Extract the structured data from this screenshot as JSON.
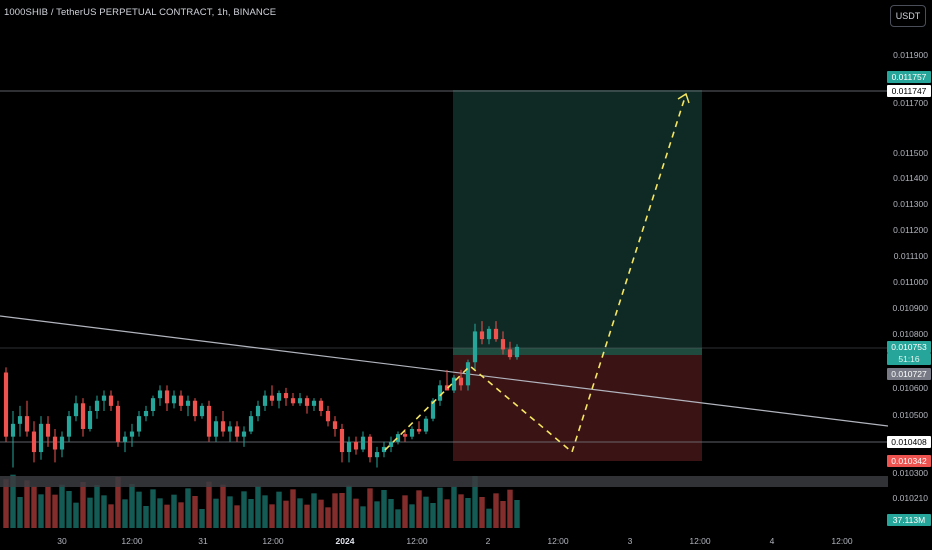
{
  "header": {
    "symbol_title": "1000SHIB / TetherUS PERPETUAL CONTRACT, 1h, BINANCE",
    "currency_button": "USDT"
  },
  "colors": {
    "up": "#26a69a",
    "down": "#ef5350",
    "profit_zone": "#0f2a24",
    "loss_zone": "#3a1315",
    "projection": "#f5e663",
    "trendline": "#b2b5be",
    "background": "#000000"
  },
  "price_axis": {
    "ticks": [
      "0.011900",
      "0.011700",
      "0.011500",
      "0.011400",
      "0.011300",
      "0.011200",
      "0.011100",
      "0.011000",
      "0.010900",
      "0.010800",
      "0.010600",
      "0.010500",
      "0.010300",
      "0.010210"
    ],
    "tags": {
      "target": "0.011757",
      "target_line": "0.011747",
      "last_price": "0.010753",
      "countdown": "51:16",
      "entry": "0.010727",
      "level": "0.010408",
      "stop": "0.010342",
      "volume": "37.113M"
    }
  },
  "time_axis": {
    "labels": [
      "30",
      "12:00",
      "31",
      "12:00",
      "2024",
      "12:00",
      "2",
      "12:00",
      "3",
      "12:00",
      "4",
      "12:00"
    ]
  },
  "chart_data": {
    "type": "candlestick",
    "interval": "1h",
    "ylim": [
      0.0102,
      0.01195
    ],
    "candles_ohlc": [
      [
        0.01065,
        0.01067,
        0.01038,
        0.0104
      ],
      [
        0.0104,
        0.0105,
        0.01028,
        0.01045
      ],
      [
        0.01045,
        0.01052,
        0.0104,
        0.01048
      ],
      [
        0.01048,
        0.01054,
        0.0104,
        0.01042
      ],
      [
        0.01042,
        0.01046,
        0.0103,
        0.01034
      ],
      [
        0.01034,
        0.01048,
        0.01031,
        0.01045
      ],
      [
        0.01045,
        0.01048,
        0.01036,
        0.0104
      ],
      [
        0.0104,
        0.01043,
        0.0103,
        0.01035
      ],
      [
        0.01035,
        0.01042,
        0.01032,
        0.0104
      ],
      [
        0.0104,
        0.0105,
        0.01038,
        0.01048
      ],
      [
        0.01048,
        0.01056,
        0.01046,
        0.01053
      ],
      [
        0.01053,
        0.01055,
        0.0104,
        0.01043
      ],
      [
        0.01043,
        0.01052,
        0.01042,
        0.0105
      ],
      [
        0.0105,
        0.01056,
        0.01047,
        0.01054
      ],
      [
        0.01054,
        0.01058,
        0.0105,
        0.01056
      ],
      [
        0.01056,
        0.01058,
        0.0105,
        0.01052
      ],
      [
        0.01052,
        0.01054,
        0.01036,
        0.01038
      ],
      [
        0.01038,
        0.01042,
        0.01034,
        0.0104
      ],
      [
        0.0104,
        0.01045,
        0.01036,
        0.01042
      ],
      [
        0.01042,
        0.0105,
        0.0104,
        0.01048
      ],
      [
        0.01048,
        0.01052,
        0.01046,
        0.0105
      ],
      [
        0.0105,
        0.01056,
        0.01048,
        0.01055
      ],
      [
        0.01055,
        0.0106,
        0.01052,
        0.01058
      ],
      [
        0.01058,
        0.0106,
        0.0105,
        0.01053
      ],
      [
        0.01053,
        0.01058,
        0.01051,
        0.01056
      ],
      [
        0.01056,
        0.01058,
        0.0105,
        0.01052
      ],
      [
        0.01052,
        0.01056,
        0.01048,
        0.01054
      ],
      [
        0.01054,
        0.01055,
        0.01046,
        0.01048
      ],
      [
        0.01048,
        0.01053,
        0.01047,
        0.01052
      ],
      [
        0.01052,
        0.01054,
        0.01038,
        0.0104
      ],
      [
        0.0104,
        0.01048,
        0.01038,
        0.01046
      ],
      [
        0.01046,
        0.0105,
        0.0104,
        0.01042
      ],
      [
        0.01042,
        0.01046,
        0.01038,
        0.01044
      ],
      [
        0.01044,
        0.01046,
        0.01038,
        0.0104
      ],
      [
        0.0104,
        0.01044,
        0.01036,
        0.01042
      ],
      [
        0.01042,
        0.0105,
        0.01041,
        0.01048
      ],
      [
        0.01048,
        0.01054,
        0.01046,
        0.01052
      ],
      [
        0.01052,
        0.01058,
        0.0105,
        0.01056
      ],
      [
        0.01056,
        0.0106,
        0.01052,
        0.01054
      ],
      [
        0.01054,
        0.01058,
        0.01051,
        0.01057
      ],
      [
        0.01057,
        0.01059,
        0.01052,
        0.01055
      ],
      [
        0.01055,
        0.01057,
        0.01052,
        0.01053
      ],
      [
        0.01053,
        0.01057,
        0.01052,
        0.01055
      ],
      [
        0.01055,
        0.01056,
        0.01049,
        0.01052
      ],
      [
        0.01052,
        0.01055,
        0.0105,
        0.01054
      ],
      [
        0.01054,
        0.01055,
        0.01048,
        0.0105
      ],
      [
        0.0105,
        0.01052,
        0.01044,
        0.01046
      ],
      [
        0.01046,
        0.01048,
        0.0104,
        0.01043
      ],
      [
        0.01043,
        0.01045,
        0.0103,
        0.01034
      ],
      [
        0.01034,
        0.0104,
        0.0103,
        0.01038
      ],
      [
        0.01038,
        0.0104,
        0.01033,
        0.01035
      ],
      [
        0.01035,
        0.01042,
        0.01034,
        0.0104
      ],
      [
        0.0104,
        0.01041,
        0.0103,
        0.01032
      ],
      [
        0.01032,
        0.01036,
        0.01028,
        0.01034
      ],
      [
        0.01034,
        0.01038,
        0.01032,
        0.01036
      ],
      [
        0.01036,
        0.0104,
        0.01034,
        0.01038
      ],
      [
        0.01038,
        0.01042,
        0.01037,
        0.01041
      ],
      [
        0.01041,
        0.01043,
        0.01038,
        0.0104
      ],
      [
        0.0104,
        0.01044,
        0.01039,
        0.01043
      ],
      [
        0.01043,
        0.01046,
        0.01041,
        0.01042
      ],
      [
        0.01042,
        0.01048,
        0.01041,
        0.01047
      ],
      [
        0.01047,
        0.01055,
        0.01046,
        0.01054
      ],
      [
        0.01054,
        0.01062,
        0.01052,
        0.0106
      ],
      [
        0.0106,
        0.01066,
        0.01058,
        0.01058
      ],
      [
        0.01058,
        0.01064,
        0.01057,
        0.01063
      ],
      [
        0.01063,
        0.01066,
        0.01058,
        0.0106
      ],
      [
        0.0106,
        0.0107,
        0.01058,
        0.01069
      ],
      [
        0.01069,
        0.01084,
        0.01066,
        0.01081
      ],
      [
        0.01081,
        0.01085,
        0.01076,
        0.01078
      ],
      [
        0.01078,
        0.01083,
        0.01076,
        0.01082
      ],
      [
        0.01082,
        0.01085,
        0.01077,
        0.01078
      ],
      [
        0.01078,
        0.01081,
        0.01072,
        0.01074
      ],
      [
        0.01074,
        0.01077,
        0.0107,
        0.01071
      ],
      [
        0.01071,
        0.01076,
        0.0107,
        0.01075
      ]
    ]
  }
}
